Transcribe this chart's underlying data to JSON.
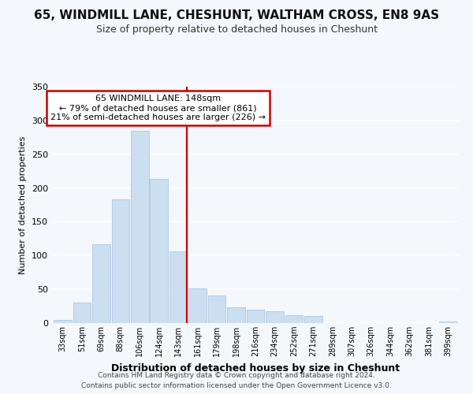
{
  "title1": "65, WINDMILL LANE, CHESHUNT, WALTHAM CROSS, EN8 9AS",
  "title2": "Size of property relative to detached houses in Cheshunt",
  "xlabel": "Distribution of detached houses by size in Cheshunt",
  "ylabel": "Number of detached properties",
  "bar_labels": [
    "33sqm",
    "51sqm",
    "69sqm",
    "88sqm",
    "106sqm",
    "124sqm",
    "143sqm",
    "161sqm",
    "179sqm",
    "198sqm",
    "216sqm",
    "234sqm",
    "252sqm",
    "271sqm",
    "289sqm",
    "307sqm",
    "326sqm",
    "344sqm",
    "362sqm",
    "381sqm",
    "399sqm"
  ],
  "bar_values": [
    5,
    30,
    117,
    183,
    285,
    213,
    106,
    51,
    41,
    23,
    20,
    17,
    12,
    10,
    0,
    0,
    0,
    0,
    0,
    0,
    2
  ],
  "bar_color": "#ccdff0",
  "bar_edge_color": "#a8c8e8",
  "vline_color": "#cc0000",
  "annotation_title": "65 WINDMILL LANE: 148sqm",
  "annotation_line1": "← 79% of detached houses are smaller (861)",
  "annotation_line2": "21% of semi-detached houses are larger (226) →",
  "ylim": [
    0,
    350
  ],
  "yticks": [
    0,
    50,
    100,
    150,
    200,
    250,
    300,
    350
  ],
  "footer1": "Contains HM Land Registry data © Crown copyright and database right 2024.",
  "footer2": "Contains public sector information licensed under the Open Government Licence v3.0.",
  "bg_color": "#f4f7fb",
  "plot_bg_color": "#f4f7fb",
  "grid_color": "#ffffff",
  "annotation_box_color": "#ffffff",
  "annotation_box_edge": "#cc0000",
  "title1_fontsize": 11,
  "title2_fontsize": 9
}
